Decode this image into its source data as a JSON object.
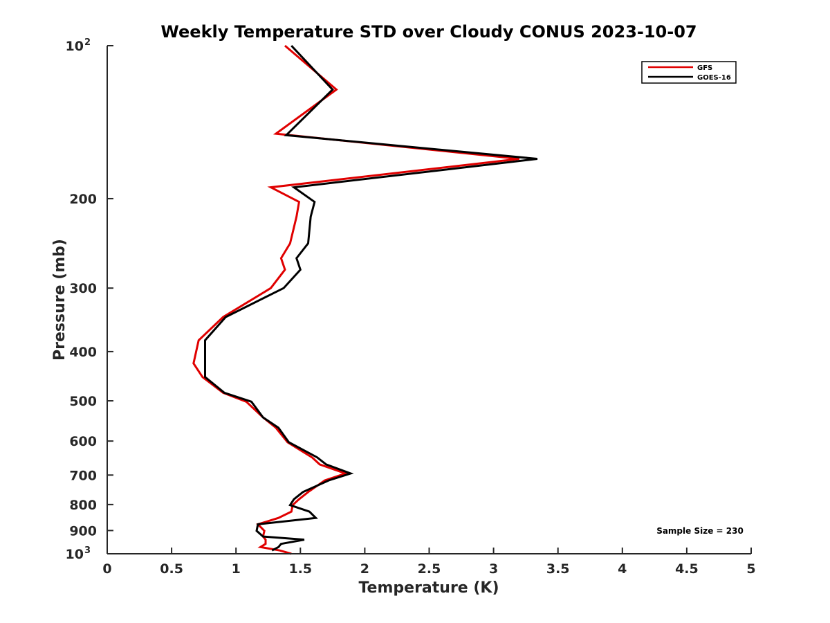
{
  "chart_data": {
    "type": "line",
    "title": "Weekly Temperature STD over Cloudy CONUS 2023-10-07",
    "xlabel": "Temperature (K)",
    "ylabel": "Pressure (mb)",
    "xlim": [
      0,
      5
    ],
    "ylim": [
      100,
      1000
    ],
    "y_scale": "log",
    "y_reversed": true,
    "x_ticks": [
      "0",
      "0.5",
      "1",
      "1.5",
      "2",
      "2.5",
      "3",
      "3.5",
      "4",
      "4.5",
      "5"
    ],
    "y_ticks": [
      {
        "value": 100,
        "base": "10",
        "exp": "2"
      },
      {
        "value": 200,
        "label": "200"
      },
      {
        "value": 300,
        "label": "300"
      },
      {
        "value": 400,
        "label": "400"
      },
      {
        "value": 500,
        "label": "500"
      },
      {
        "value": 600,
        "label": "600"
      },
      {
        "value": 700,
        "label": "700"
      },
      {
        "value": 800,
        "label": "800"
      },
      {
        "value": 900,
        "label": "900"
      },
      {
        "value": 1000,
        "base": "10",
        "exp": "3"
      }
    ],
    "grid": false,
    "legend_position": "top-right",
    "annotation": "Sample Size = 230",
    "series": [
      {
        "name": "GFS",
        "color": "#e00000",
        "points": [
          [
            1.38,
            100
          ],
          [
            1.78,
            122
          ],
          [
            1.31,
            149
          ],
          [
            3.2,
            167
          ],
          [
            1.27,
            190
          ],
          [
            1.49,
            203
          ],
          [
            1.47,
            217
          ],
          [
            1.42,
            245
          ],
          [
            1.35,
            262
          ],
          [
            1.38,
            276
          ],
          [
            1.27,
            300
          ],
          [
            0.9,
            342
          ],
          [
            0.71,
            380
          ],
          [
            0.67,
            422
          ],
          [
            0.74,
            449
          ],
          [
            0.9,
            482
          ],
          [
            1.08,
            502
          ],
          [
            1.21,
            539
          ],
          [
            1.31,
            565
          ],
          [
            1.4,
            603
          ],
          [
            1.59,
            646
          ],
          [
            1.65,
            667
          ],
          [
            1.85,
            695
          ],
          [
            1.69,
            717
          ],
          [
            1.56,
            756
          ],
          [
            1.49,
            781
          ],
          [
            1.44,
            802
          ],
          [
            1.43,
            826
          ],
          [
            1.33,
            850
          ],
          [
            1.17,
            875
          ],
          [
            1.22,
            901
          ],
          [
            1.21,
            925
          ],
          [
            1.23,
            938
          ],
          [
            1.23,
            956
          ],
          [
            1.19,
            970
          ],
          [
            1.34,
            985
          ],
          [
            1.43,
            1000
          ]
        ]
      },
      {
        "name": "GOES-16",
        "color": "#000000",
        "points": [
          [
            1.43,
            100
          ],
          [
            1.75,
            122
          ],
          [
            1.39,
            150
          ],
          [
            3.34,
            167
          ],
          [
            1.45,
            190
          ],
          [
            1.61,
            203
          ],
          [
            1.58,
            217
          ],
          [
            1.56,
            245
          ],
          [
            1.47,
            262
          ],
          [
            1.5,
            276
          ],
          [
            1.37,
            300
          ],
          [
            0.92,
            342
          ],
          [
            0.76,
            380
          ],
          [
            0.76,
            422
          ],
          [
            0.76,
            449
          ],
          [
            0.91,
            482
          ],
          [
            1.12,
            502
          ],
          [
            1.21,
            539
          ],
          [
            1.33,
            565
          ],
          [
            1.41,
            603
          ],
          [
            1.63,
            646
          ],
          [
            1.7,
            667
          ],
          [
            1.89,
            695
          ],
          [
            1.72,
            717
          ],
          [
            1.52,
            756
          ],
          [
            1.45,
            781
          ],
          [
            1.42,
            802
          ],
          [
            1.57,
            826
          ],
          [
            1.62,
            850
          ],
          [
            1.17,
            875
          ],
          [
            1.16,
            901
          ],
          [
            1.21,
            925
          ],
          [
            1.53,
            938
          ],
          [
            1.35,
            956
          ],
          [
            1.33,
            970
          ],
          [
            1.28,
            985
          ]
        ]
      }
    ]
  }
}
